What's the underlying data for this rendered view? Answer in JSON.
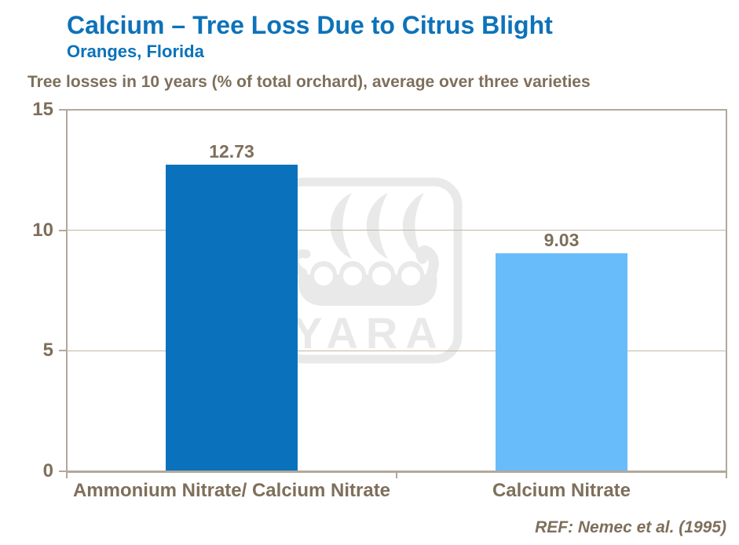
{
  "header": {
    "title": "Calcium – Tree Loss Due to Citrus Blight",
    "subtitle": "Oranges, Florida",
    "note": "Tree losses in 10 years (% of total orchard), average over three varieties"
  },
  "footer": {
    "reference": "REF: Nemec et al. (1995)"
  },
  "watermark": {
    "brand": "YARA"
  },
  "colors": {
    "heading_blue": "#0d72b9",
    "body_brown": "#7e6f5b",
    "axis_frame": "#b2a89b",
    "gridline": "#c2b7a7",
    "bar_dark": "#0a72bc",
    "bar_light": "#69bcfa",
    "watermark_gray": "#e9e9e9"
  },
  "chart_data": {
    "type": "bar",
    "title": "Calcium – Tree Loss Due to Citrus Blight",
    "subtitle": "Oranges, Florida",
    "note": "Tree losses in 10 years (% of total orchard), average over three varieties",
    "categories": [
      "Ammonium Nitrate/ Calcium Nitrate",
      "Calcium Nitrate"
    ],
    "values": [
      12.73,
      9.03
    ],
    "value_labels": [
      "12.73",
      "9.03"
    ],
    "bar_colors": [
      "#0a72bc",
      "#69bcfa"
    ],
    "xlabel": "",
    "ylabel": "",
    "units": "% of total orchard",
    "ylim": [
      0,
      15
    ],
    "yticks": [
      0,
      5,
      10,
      15
    ],
    "grid": "horizontal-only",
    "legend": "none"
  }
}
